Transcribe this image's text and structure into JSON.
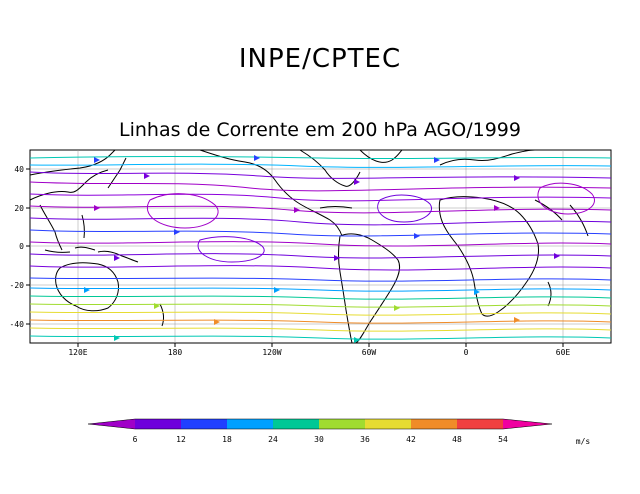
{
  "header": {
    "title": "INPE/CPTEC",
    "subtitle": "Linhas de Corrente em 200 hPa AGO/1999"
  },
  "map": {
    "lon_labels": [
      "120E",
      "180",
      "120W",
      "60W",
      "0",
      "60E"
    ],
    "lat_labels": [
      "40",
      "20",
      "0",
      "-20",
      "-40"
    ]
  },
  "legend": {
    "labels": [
      "6",
      "12",
      "18",
      "24",
      "30",
      "36",
      "42",
      "48",
      "54"
    ],
    "unit": "m/s",
    "colors": [
      "#a000c8",
      "#6e00dc",
      "#2040ff",
      "#00a0ff",
      "#00c896",
      "#a0dc30",
      "#e6dc32",
      "#f08c28",
      "#f04040",
      "#f000a0"
    ]
  }
}
